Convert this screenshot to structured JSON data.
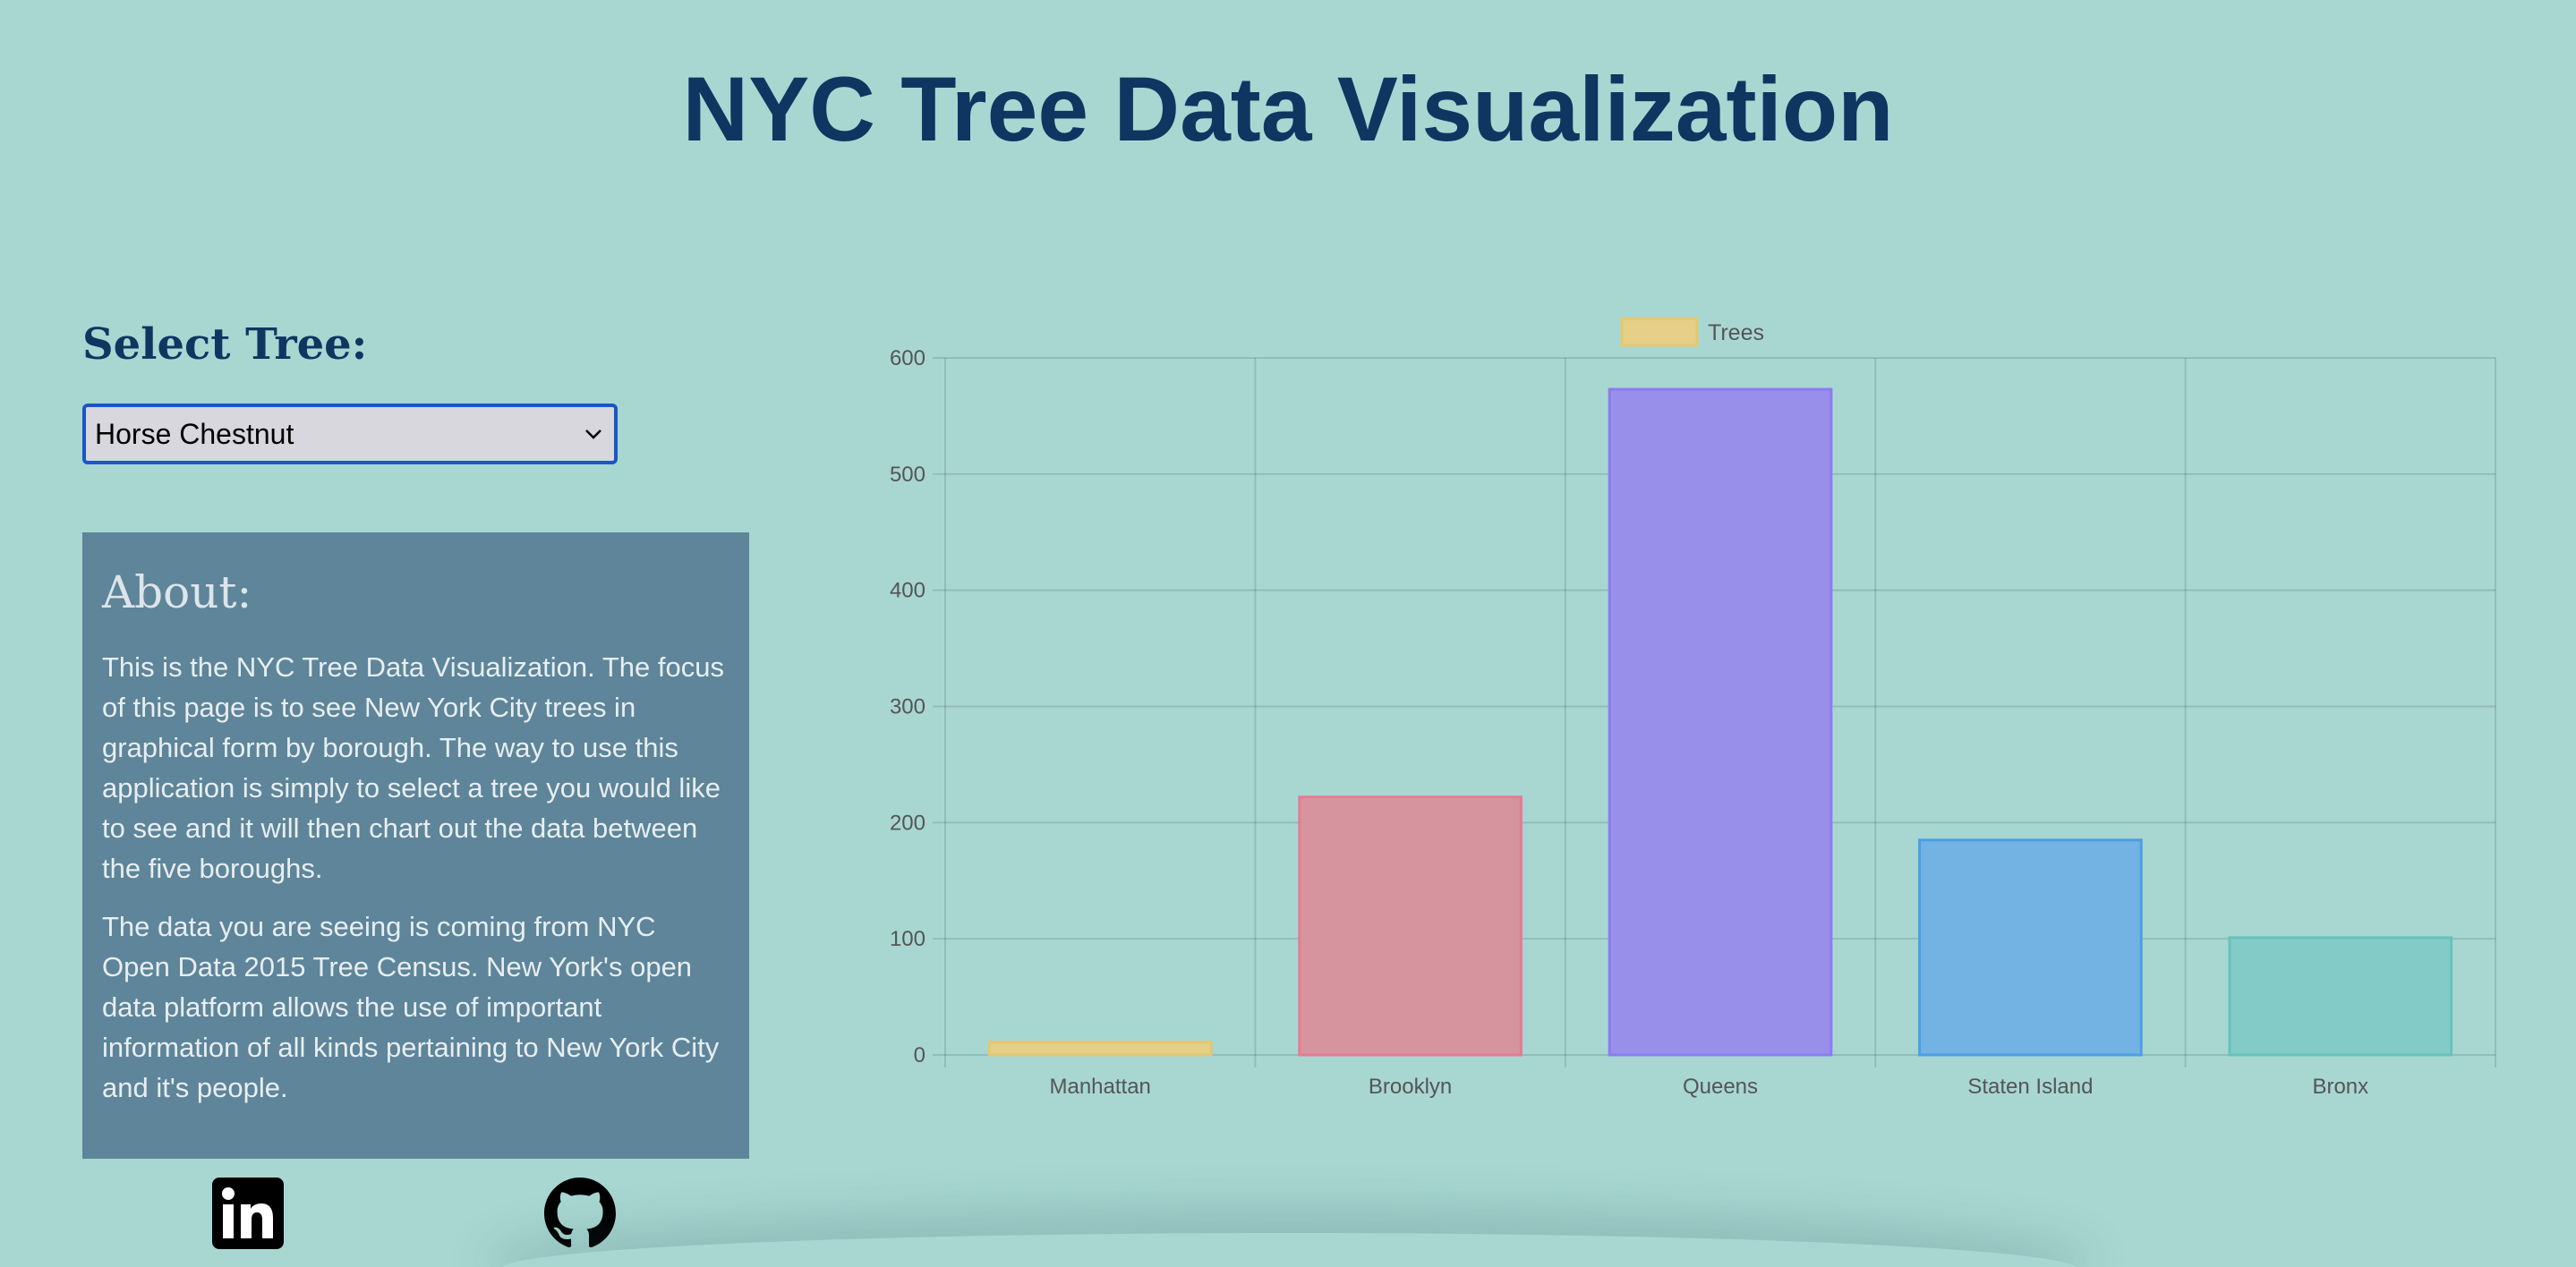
{
  "header": {
    "title": "NYC Tree Data Visualization"
  },
  "sidebar": {
    "select_label": "Select Tree:",
    "select_value": "Horse Chestnut",
    "about_heading": "About:",
    "about_paragraphs": [
      "This is the NYC Tree Data Visualization. The focus of this page is to see New York City trees in graphical form by borough. The way to use this application is simply to select a tree you would like to see and it will then chart out the data between the five boroughs.",
      "The data you are seeing is coming from NYC Open Data 2015 Tree Census. New York's open data platform allows the use of important information of all kinds pertaining to New York City and it's people."
    ]
  },
  "social": {
    "linkedin_icon": "linkedin-icon",
    "github_icon": "github-icon"
  },
  "chart_data": {
    "type": "bar",
    "categories": [
      "Manhattan",
      "Brooklyn",
      "Queens",
      "Staten Island",
      "Bronx"
    ],
    "series": [
      {
        "name": "Trees",
        "values": [
          11,
          222,
          573,
          185,
          101
        ]
      }
    ],
    "ylim": [
      0,
      600
    ],
    "yticks": [
      0,
      100,
      200,
      300,
      400,
      500,
      600
    ],
    "title": "",
    "xlabel": "",
    "ylabel": "",
    "grid": true,
    "legend_position": "top-center",
    "bar_fills": [
      "#e6cf86",
      "#d6949f",
      "#978fe9",
      "#72b3e3",
      "#83cbc6"
    ],
    "bar_strokes": [
      "#e3c871",
      "#e77a92",
      "#8b7cf0",
      "#4c9ee6",
      "#66c2bd"
    ],
    "legend_fill": "#e6cf86",
    "legend_stroke": "#e3c871"
  }
}
